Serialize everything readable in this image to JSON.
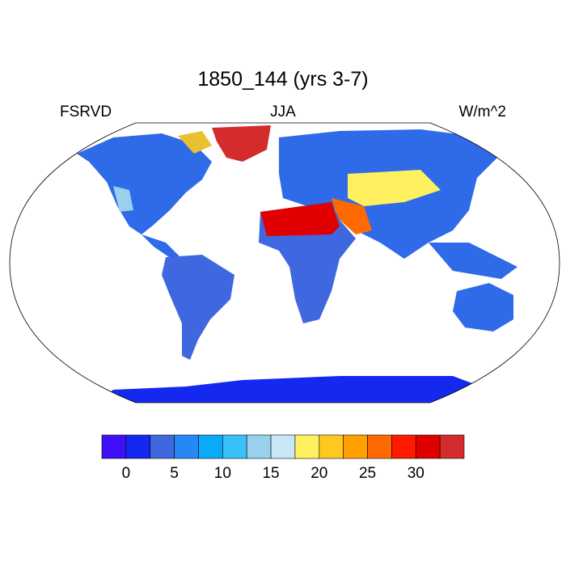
{
  "title": "1850_144 (yrs 3-7)",
  "left_string": "FSRVD",
  "center_string": "JJA",
  "right_string": "W/m^2",
  "chart_data": {
    "type": "heatmap",
    "projection": "robinson",
    "variable": "FSRVD",
    "season": "JJA",
    "units": "W/m^2",
    "colorbar": {
      "levels": [
        0,
        2.5,
        5,
        7.5,
        10,
        12.5,
        15,
        17.5,
        20,
        22.5,
        25,
        27.5,
        30,
        32.5
      ],
      "tick_labels": [
        "0",
        "5",
        "10",
        "15",
        "20",
        "25",
        "30"
      ],
      "colors": [
        "#3f10f5",
        "#1428f0",
        "#3f68e0",
        "#2588f5",
        "#0aaaf8",
        "#38c0f8",
        "#98d0ee",
        "#c8e8f8",
        "#fff060",
        "#ffc820",
        "#ffa000",
        "#ff6a00",
        "#ff1a00",
        "#e00000",
        "#d42c2c"
      ],
      "orientation": "horizontal",
      "placement": "bottom"
    }
  }
}
